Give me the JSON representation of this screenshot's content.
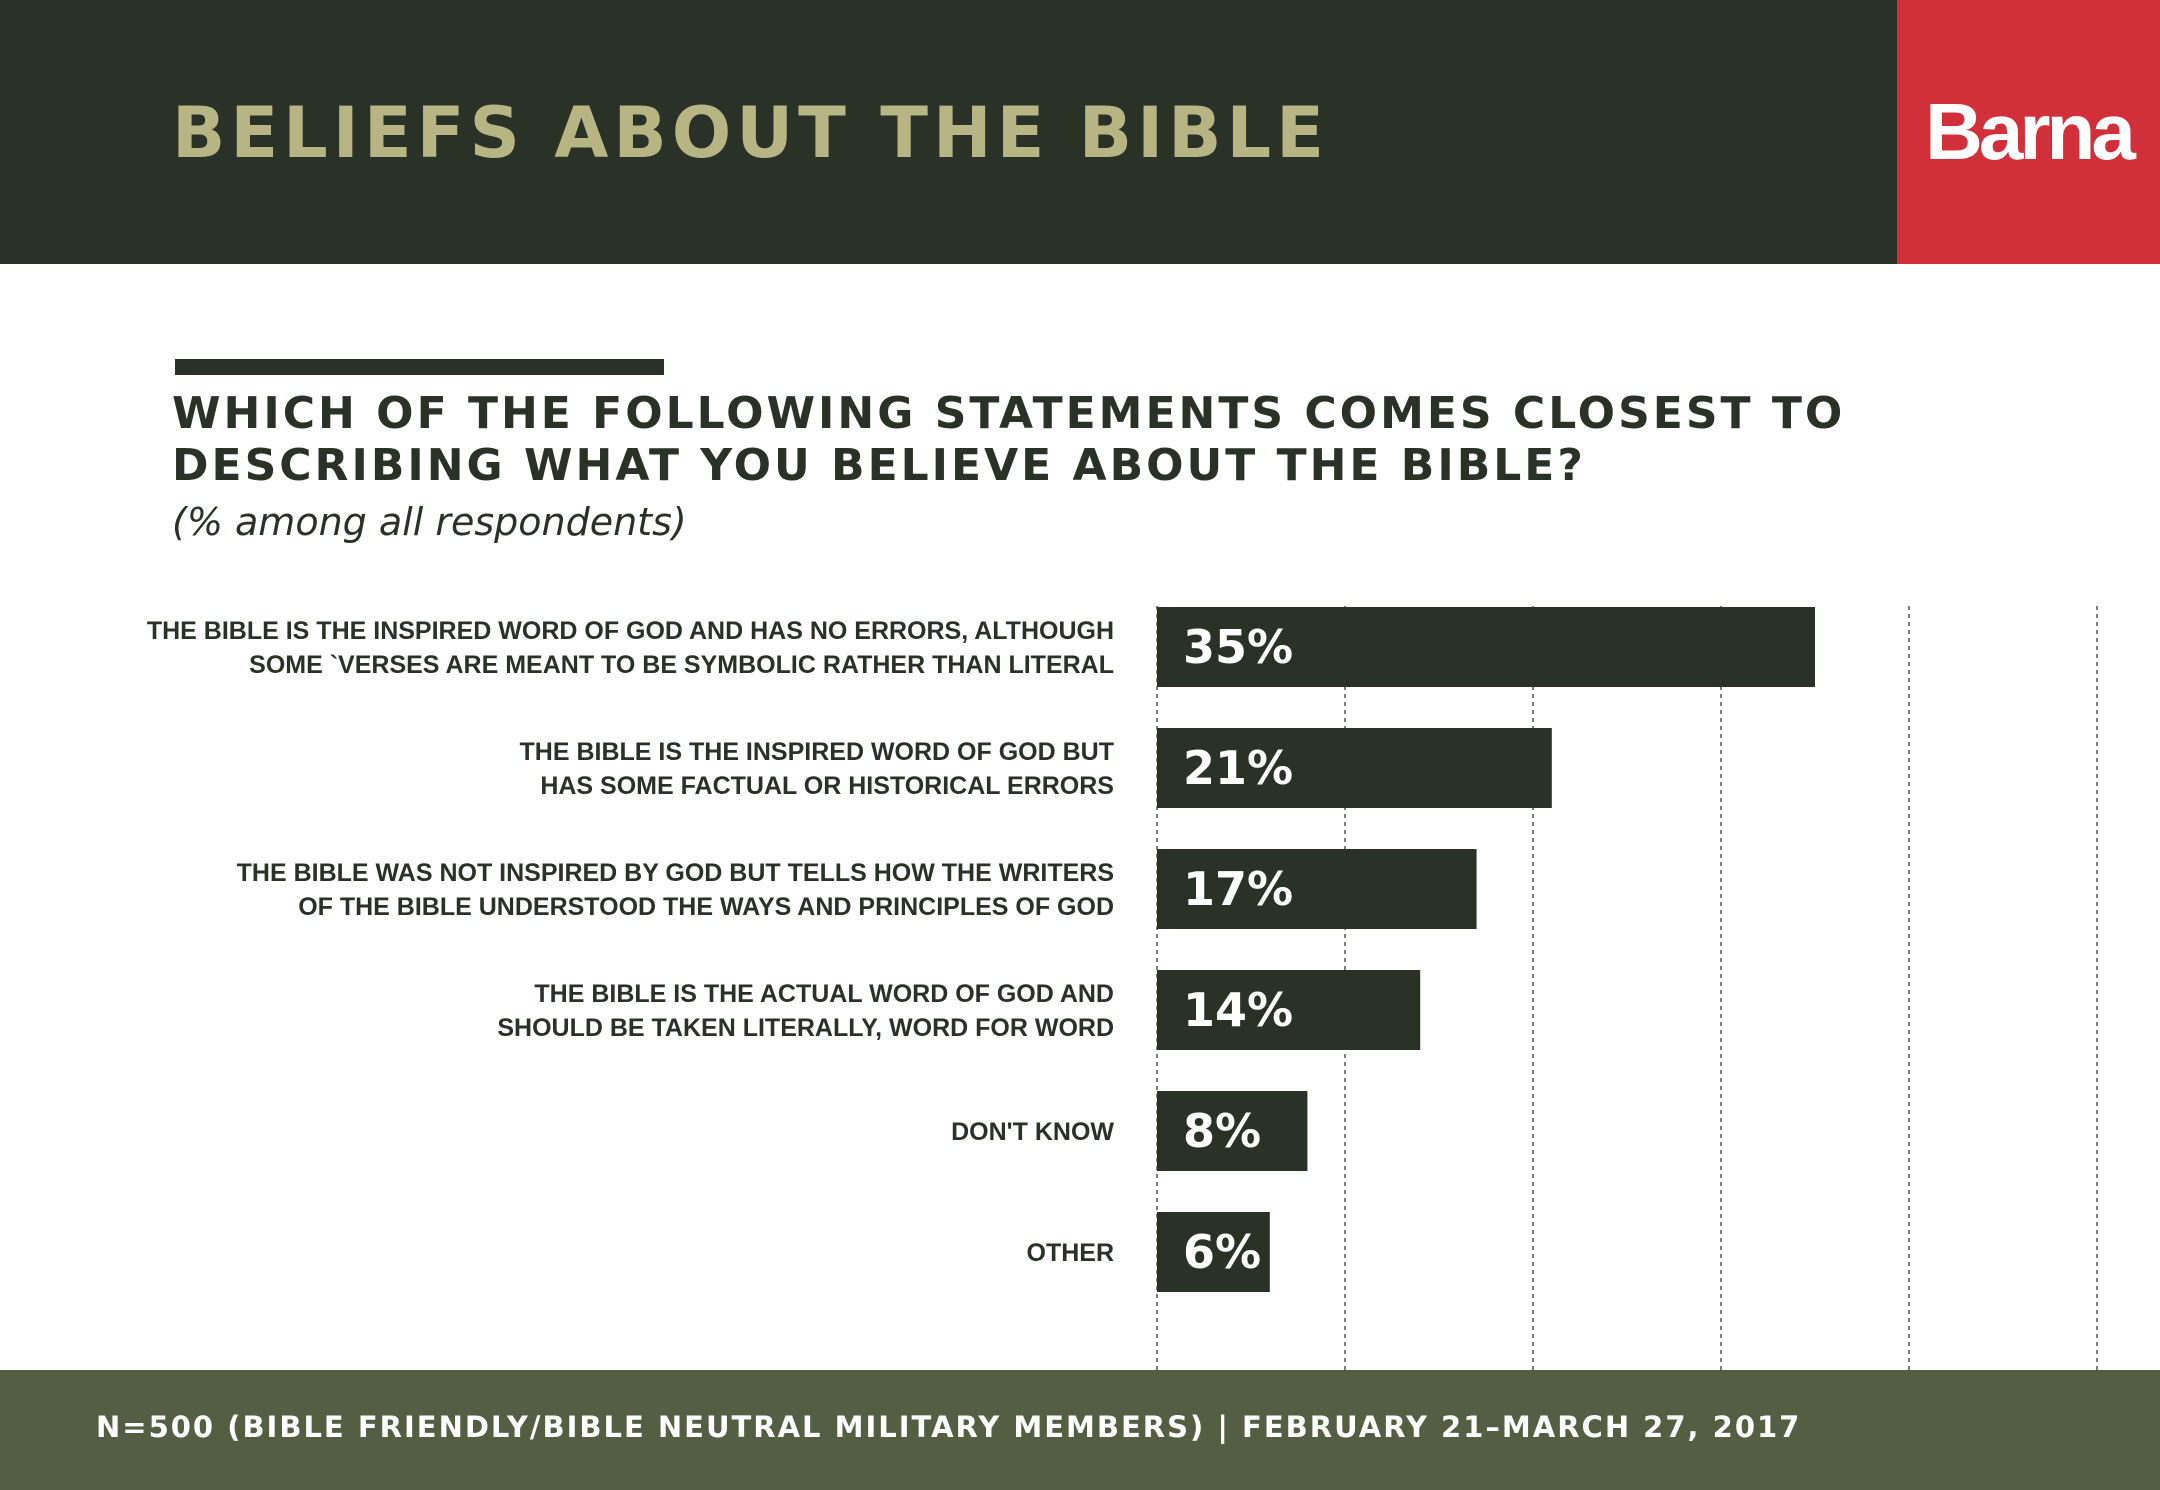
{
  "header": {
    "title": "BELIEFS ABOUT THE BIBLE",
    "logo_text": "Barna"
  },
  "colors": {
    "header_bg": "#2a3127",
    "title": "#b7b584",
    "logo_bg": "#d1303b",
    "bar": "#2a3127",
    "footer_bg": "#535e42"
  },
  "footer": {
    "text": "N=500 (BIBLE FRIENDLY/BIBLE NEUTRAL MILITARY MEMBERS) | FEBRUARY 21–MARCH 27, 2017"
  },
  "chart_data": {
    "type": "bar",
    "orientation": "horizontal",
    "title": "WHICH OF THE FOLLOWING STATEMENTS COMES CLOSEST TO DESCRIBING WHAT YOU BELIEVE ABOUT THE BIBLE?",
    "title_lines": [
      "WHICH OF THE FOLLOWING STATEMENTS COMES CLOSEST TO",
      "DESCRIBING WHAT YOU BELIEVE ABOUT THE BIBLE?"
    ],
    "subtitle": "(% among all respondents)",
    "categories": [
      [
        "THE BIBLE IS THE INSPIRED WORD OF GOD AND HAS NO ERRORS, ALTHOUGH",
        "SOME `VERSES ARE MEANT TO BE SYMBOLIC RATHER THAN LITERAL"
      ],
      [
        "THE BIBLE IS THE INSPIRED WORD OF GOD BUT",
        "HAS SOME FACTUAL OR HISTORICAL ERRORS"
      ],
      [
        "THE BIBLE WAS NOT INSPIRED BY GOD BUT TELLS HOW THE WRITERS",
        "OF THE BIBLE UNDERSTOOD THE WAYS AND PRINCIPLES OF GOD"
      ],
      [
        "THE BIBLE IS THE ACTUAL WORD OF GOD AND",
        "SHOULD BE TAKEN LITERALLY, WORD FOR WORD"
      ],
      [
        "DON'T KNOW"
      ],
      [
        "OTHER"
      ]
    ],
    "values": [
      35,
      21,
      17,
      14,
      8,
      6
    ],
    "value_labels": [
      "35%",
      "21%",
      "17%",
      "14%",
      "8%",
      "6%"
    ],
    "xlim": [
      0,
      50
    ],
    "gridlines": [
      0,
      10,
      20,
      30,
      40,
      50
    ],
    "grid": "dashed vertical"
  }
}
